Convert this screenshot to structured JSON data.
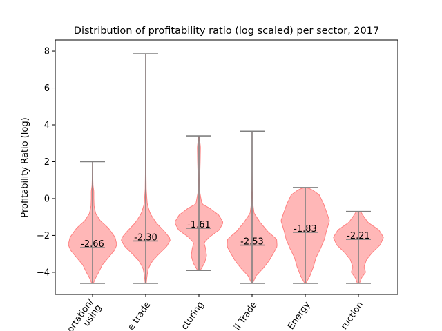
{
  "chart_data": {
    "type": "violin",
    "title": "Distribution of profitability ratio (log scaled) per sector, 2017",
    "xlabel": "",
    "ylabel": "Profitability Ratio (log)",
    "ylim": [
      -5.2,
      8.6
    ],
    "yticks": [
      "−4",
      "−2",
      "0",
      "2",
      "4",
      "6",
      "8"
    ],
    "ytick_values": [
      -4,
      -2,
      0,
      2,
      4,
      6,
      8
    ],
    "categories": [
      "Transportation/\nWarehousing",
      "Wholesale trade",
      "Manufacturing",
      "Retail Trade",
      "Energy",
      "Construction"
    ],
    "categories_visible_text": [
      "ortation/\nusing",
      "e trade",
      "cturing",
      "il Trade",
      "Energy",
      "ruction"
    ],
    "medians": [
      -2.66,
      -2.3,
      -1.61,
      -2.53,
      -1.83,
      -2.21
    ],
    "median_labels": [
      "-2.66",
      "-2.30",
      "-1.61",
      "-2.53",
      "-1.83",
      "-2.21"
    ],
    "mins": [
      -4.6,
      -4.6,
      -3.9,
      -4.6,
      -4.6,
      -4.6
    ],
    "maxs": [
      2.0,
      7.85,
      3.4,
      3.65,
      0.6,
      -0.7
    ],
    "density_profiles": [
      [
        [
          -4.6,
          0.03
        ],
        [
          -4.3,
          0.12
        ],
        [
          -4.0,
          0.24
        ],
        [
          -3.6,
          0.38
        ],
        [
          -3.2,
          0.62
        ],
        [
          -2.8,
          0.86
        ],
        [
          -2.5,
          0.95
        ],
        [
          -2.1,
          0.88
        ],
        [
          -1.6,
          0.62
        ],
        [
          -1.2,
          0.3
        ],
        [
          -0.8,
          0.12
        ],
        [
          -0.4,
          0.06
        ],
        [
          0.0,
          0.05
        ],
        [
          0.4,
          0.05
        ],
        [
          0.7,
          0.02
        ],
        [
          1.2,
          0.01
        ],
        [
          2.0,
          0.005
        ]
      ],
      [
        [
          -4.6,
          0.02
        ],
        [
          -4.2,
          0.05
        ],
        [
          -3.8,
          0.1
        ],
        [
          -3.4,
          0.25
        ],
        [
          -3.0,
          0.52
        ],
        [
          -2.6,
          0.82
        ],
        [
          -2.2,
          0.98
        ],
        [
          -1.8,
          0.74
        ],
        [
          -1.3,
          0.4
        ],
        [
          -0.8,
          0.17
        ],
        [
          -0.3,
          0.06
        ],
        [
          0.5,
          0.02
        ],
        [
          1.5,
          0.012
        ],
        [
          3.0,
          0.008
        ],
        [
          5.0,
          0.006
        ],
        [
          7.85,
          0.004
        ]
      ],
      [
        [
          -3.9,
          0.05
        ],
        [
          -3.5,
          0.22
        ],
        [
          -3.1,
          0.3
        ],
        [
          -2.7,
          0.26
        ],
        [
          -2.4,
          0.2
        ],
        [
          -2.1,
          0.4
        ],
        [
          -1.7,
          0.8
        ],
        [
          -1.3,
          0.95
        ],
        [
          -0.9,
          0.78
        ],
        [
          -0.5,
          0.4
        ],
        [
          -0.3,
          0.12
        ],
        [
          0.3,
          0.04
        ],
        [
          1.0,
          0.03
        ],
        [
          2.0,
          0.05
        ],
        [
          2.8,
          0.06
        ],
        [
          3.4,
          0.01
        ]
      ],
      [
        [
          -4.6,
          0.02
        ],
        [
          -4.2,
          0.15
        ],
        [
          -3.8,
          0.42
        ],
        [
          -3.4,
          0.65
        ],
        [
          -3.0,
          0.82
        ],
        [
          -2.6,
          0.98
        ],
        [
          -2.2,
          0.96
        ],
        [
          -1.8,
          0.62
        ],
        [
          -1.3,
          0.32
        ],
        [
          -0.8,
          0.08
        ],
        [
          -0.4,
          0.04
        ],
        [
          0.0,
          0.03
        ],
        [
          0.4,
          0.01
        ],
        [
          1.5,
          0.004
        ],
        [
          3.65,
          0.003
        ]
      ],
      [
        [
          -4.6,
          0.02
        ],
        [
          -4.2,
          0.18
        ],
        [
          -3.7,
          0.32
        ],
        [
          -3.2,
          0.42
        ],
        [
          -2.7,
          0.6
        ],
        [
          -2.2,
          0.75
        ],
        [
          -1.8,
          0.82
        ],
        [
          -1.2,
          0.95
        ],
        [
          -0.8,
          0.85
        ],
        [
          -0.3,
          0.72
        ],
        [
          0.2,
          0.55
        ],
        [
          0.5,
          0.25
        ],
        [
          0.6,
          0.02
        ]
      ],
      [
        [
          -4.6,
          0.04
        ],
        [
          -4.3,
          0.12
        ],
        [
          -4.0,
          0.28
        ],
        [
          -3.7,
          0.22
        ],
        [
          -3.3,
          0.32
        ],
        [
          -2.9,
          0.56
        ],
        [
          -2.5,
          0.86
        ],
        [
          -2.1,
          0.98
        ],
        [
          -1.7,
          0.8
        ],
        [
          -1.3,
          0.38
        ],
        [
          -1.0,
          0.22
        ],
        [
          -0.7,
          0.08
        ]
      ]
    ],
    "colors": {
      "violin_fill": "#ff9999",
      "violin_edge": "#ff8080",
      "whisker": "#808080"
    },
    "grid": false,
    "legend": "none"
  }
}
